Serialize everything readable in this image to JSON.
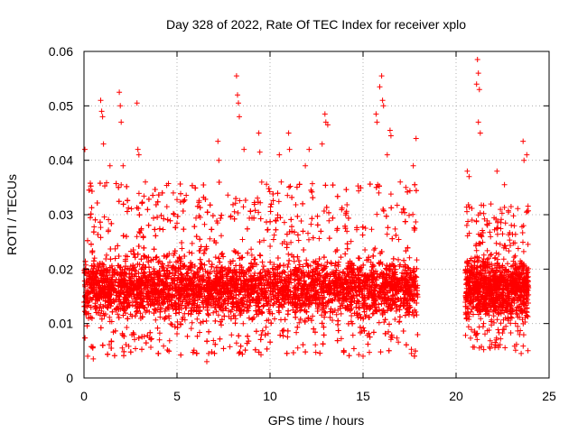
{
  "chart_data": {
    "type": "scatter",
    "title": "Day 328 of 2022, Rate Of TEC Index for receiver xplo",
    "xlabel": "GPS time / hours",
    "ylabel": "ROTI / TECUs",
    "xlim": [
      0,
      25
    ],
    "ylim": [
      0,
      0.06
    ],
    "x_ticks": [
      0,
      5,
      10,
      15,
      20,
      25
    ],
    "x_tick_labels": [
      "0",
      "5",
      "10",
      "15",
      "20",
      "25"
    ],
    "y_ticks": [
      0,
      0.01,
      0.02,
      0.03,
      0.04,
      0.05,
      0.06
    ],
    "y_tick_labels": [
      "0",
      "0.01",
      "0.02",
      "0.03",
      "0.04",
      "0.05",
      "0.06"
    ],
    "grid": true,
    "marker": "+",
    "color": "#ff0000",
    "series": [
      {
        "name": "ROTI",
        "segments": [
          {
            "x_range": [
              0.0,
              17.95
            ],
            "typical_range": [
              0.009,
              0.024
            ],
            "max_range": [
              0.004,
              0.036
            ]
          },
          {
            "x_range": [
              20.5,
              23.9
            ],
            "typical_range": [
              0.009,
              0.024
            ],
            "max_range": [
              0.005,
              0.032
            ]
          }
        ],
        "notable_points": [
          {
            "x": 0.05,
            "y": 0.042
          },
          {
            "x": 0.2,
            "y": 0.004
          },
          {
            "x": 0.5,
            "y": 0.0035
          },
          {
            "x": 0.9,
            "y": 0.051
          },
          {
            "x": 0.95,
            "y": 0.049
          },
          {
            "x": 1.0,
            "y": 0.048
          },
          {
            "x": 1.05,
            "y": 0.043
          },
          {
            "x": 1.4,
            "y": 0.039
          },
          {
            "x": 1.9,
            "y": 0.0525
          },
          {
            "x": 1.95,
            "y": 0.05
          },
          {
            "x": 2.0,
            "y": 0.047
          },
          {
            "x": 2.1,
            "y": 0.039
          },
          {
            "x": 2.85,
            "y": 0.0505
          },
          {
            "x": 2.9,
            "y": 0.042
          },
          {
            "x": 2.95,
            "y": 0.041
          },
          {
            "x": 3.3,
            "y": 0.036
          },
          {
            "x": 4.8,
            "y": 0.034
          },
          {
            "x": 6.6,
            "y": 0.003
          },
          {
            "x": 6.7,
            "y": 0.0045
          },
          {
            "x": 7.2,
            "y": 0.0435
          },
          {
            "x": 7.25,
            "y": 0.04
          },
          {
            "x": 8.2,
            "y": 0.0555
          },
          {
            "x": 8.25,
            "y": 0.052
          },
          {
            "x": 8.3,
            "y": 0.0505
          },
          {
            "x": 8.35,
            "y": 0.048
          },
          {
            "x": 8.6,
            "y": 0.042
          },
          {
            "x": 9.4,
            "y": 0.045
          },
          {
            "x": 9.45,
            "y": 0.0415
          },
          {
            "x": 10.5,
            "y": 0.041
          },
          {
            "x": 10.6,
            "y": 0.036
          },
          {
            "x": 11.0,
            "y": 0.045
          },
          {
            "x": 11.05,
            "y": 0.042
          },
          {
            "x": 11.9,
            "y": 0.039
          },
          {
            "x": 12.1,
            "y": 0.042
          },
          {
            "x": 12.8,
            "y": 0.043
          },
          {
            "x": 12.95,
            "y": 0.0485
          },
          {
            "x": 13.0,
            "y": 0.047
          },
          {
            "x": 13.1,
            "y": 0.0465
          },
          {
            "x": 15.0,
            "y": 0.004
          },
          {
            "x": 15.7,
            "y": 0.0485
          },
          {
            "x": 15.75,
            "y": 0.047
          },
          {
            "x": 15.9,
            "y": 0.0535
          },
          {
            "x": 16.0,
            "y": 0.0555
          },
          {
            "x": 16.05,
            "y": 0.051
          },
          {
            "x": 16.1,
            "y": 0.05
          },
          {
            "x": 16.3,
            "y": 0.041
          },
          {
            "x": 16.45,
            "y": 0.0455
          },
          {
            "x": 16.5,
            "y": 0.0445
          },
          {
            "x": 17.0,
            "y": 0.036
          },
          {
            "x": 17.3,
            "y": 0.035
          },
          {
            "x": 17.7,
            "y": 0.039
          },
          {
            "x": 17.85,
            "y": 0.044
          },
          {
            "x": 20.6,
            "y": 0.038
          },
          {
            "x": 20.7,
            "y": 0.037
          },
          {
            "x": 21.1,
            "y": 0.054
          },
          {
            "x": 21.15,
            "y": 0.0585
          },
          {
            "x": 21.2,
            "y": 0.056
          },
          {
            "x": 21.25,
            "y": 0.053
          },
          {
            "x": 21.2,
            "y": 0.047
          },
          {
            "x": 21.3,
            "y": 0.045
          },
          {
            "x": 21.25,
            "y": 0.0055
          },
          {
            "x": 22.2,
            "y": 0.038
          },
          {
            "x": 22.6,
            "y": 0.0355
          },
          {
            "x": 23.6,
            "y": 0.0435
          },
          {
            "x": 23.65,
            "y": 0.04
          },
          {
            "x": 23.8,
            "y": 0.041
          },
          {
            "x": 23.5,
            "y": 0.0045
          }
        ]
      }
    ]
  }
}
